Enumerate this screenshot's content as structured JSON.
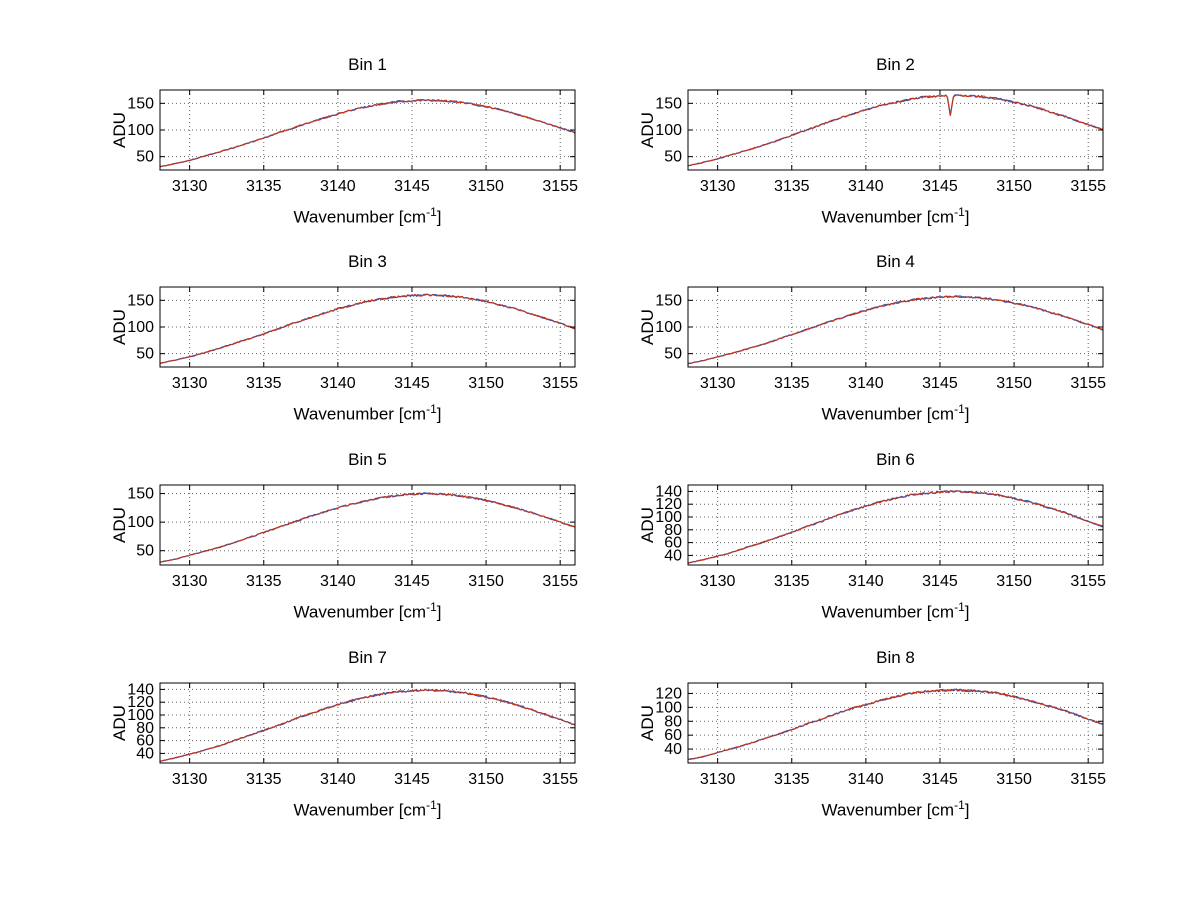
{
  "figure": {
    "background": "#ffffff",
    "ylabel": "ADU",
    "xlabel": {
      "pre": "Wavenumber [cm",
      "sup": "-1",
      "post": "]"
    }
  },
  "chart_data": {
    "type": "line",
    "layout": {
      "rows": 4,
      "cols": 2,
      "grid": true,
      "grid_style": "dotted",
      "legend": "none"
    },
    "xlabel": "Wavenumber [cm^-1]",
    "ylabel": "ADU",
    "xlim": [
      3128,
      3156
    ],
    "xticks": [
      3130,
      3135,
      3140,
      3145,
      3150,
      3155
    ],
    "x_start": 3128,
    "x_step": 1,
    "grid_color": "#666666",
    "series": [
      {
        "name": "underlay-blue",
        "color": "#3355bb"
      },
      {
        "name": "spectrum-red",
        "color": "#cc3311"
      }
    ],
    "charts": [
      {
        "title": "Bin 1",
        "ylim": [
          25,
          175
        ],
        "yticks": [
          50,
          100,
          150
        ],
        "noise": 1.6,
        "spike": null,
        "values": [
          31,
          37,
          43,
          51,
          59,
          67,
          76,
          85,
          95,
          104,
          113,
          122,
          130,
          138,
          144,
          149,
          153,
          155,
          156,
          155,
          153,
          149,
          144,
          138,
          130,
          122,
          113,
          104,
          95
        ]
      },
      {
        "title": "Bin 2",
        "ylim": [
          25,
          175
        ],
        "yticks": [
          50,
          100,
          150
        ],
        "noise": 1.8,
        "spike": {
          "x": 3145.7,
          "y": 127
        },
        "values": [
          33,
          39,
          46,
          54,
          62,
          71,
          80,
          90,
          100,
          110,
          120,
          129,
          138,
          146,
          152,
          158,
          162,
          164,
          165,
          164,
          162,
          158,
          152,
          146,
          138,
          129,
          120,
          110,
          100
        ]
      },
      {
        "title": "Bin 3",
        "ylim": [
          25,
          175
        ],
        "yticks": [
          50,
          100,
          150
        ],
        "noise": 1.7,
        "spike": null,
        "values": [
          32,
          38,
          44,
          52,
          60,
          69,
          78,
          87,
          97,
          107,
          116,
          125,
          134,
          141,
          148,
          153,
          157,
          159,
          160,
          159,
          157,
          153,
          148,
          141,
          134,
          125,
          116,
          107,
          97
        ]
      },
      {
        "title": "Bin 4",
        "ylim": [
          25,
          175
        ],
        "yticks": [
          50,
          100,
          150
        ],
        "noise": 1.7,
        "spike": null,
        "values": [
          31,
          37,
          44,
          51,
          59,
          67,
          76,
          86,
          95,
          105,
          114,
          123,
          131,
          139,
          145,
          150,
          154,
          156,
          157,
          156,
          154,
          150,
          145,
          139,
          131,
          123,
          114,
          105,
          95
        ]
      },
      {
        "title": "Bin 5",
        "ylim": [
          25,
          165
        ],
        "yticks": [
          50,
          100,
          150
        ],
        "noise": 1.5,
        "spike": null,
        "values": [
          30,
          35,
          42,
          49,
          56,
          64,
          73,
          82,
          91,
          100,
          109,
          117,
          125,
          132,
          138,
          143,
          147,
          149,
          150,
          149,
          147,
          143,
          138,
          132,
          125,
          117,
          109,
          100,
          91
        ]
      },
      {
        "title": "Bin 6",
        "ylim": [
          25,
          150
        ],
        "yticks": [
          40,
          60,
          80,
          100,
          120,
          140
        ],
        "noise": 1.5,
        "spike": null,
        "values": [
          28,
          33,
          39,
          45,
          53,
          60,
          68,
          76,
          85,
          93,
          102,
          110,
          117,
          124,
          129,
          134,
          137,
          139,
          140,
          139,
          137,
          134,
          129,
          124,
          117,
          110,
          102,
          93,
          85
        ]
      },
      {
        "title": "Bin 7",
        "ylim": [
          25,
          150
        ],
        "yticks": [
          40,
          60,
          80,
          100,
          120,
          140
        ],
        "noise": 1.5,
        "spike": null,
        "values": [
          28,
          33,
          39,
          45,
          52,
          60,
          68,
          76,
          84,
          93,
          101,
          109,
          116,
          123,
          128,
          133,
          136,
          138,
          139,
          138,
          136,
          133,
          128,
          123,
          116,
          109,
          101,
          93,
          84
        ]
      },
      {
        "title": "Bin 8",
        "ylim": [
          20,
          135
        ],
        "yticks": [
          40,
          60,
          80,
          100,
          120
        ],
        "noise": 1.4,
        "spike": null,
        "values": [
          25,
          29,
          35,
          41,
          47,
          54,
          61,
          68,
          76,
          83,
          91,
          98,
          104,
          110,
          115,
          120,
          123,
          124,
          125,
          124,
          123,
          120,
          115,
          110,
          104,
          98,
          91,
          83,
          76
        ]
      }
    ]
  }
}
